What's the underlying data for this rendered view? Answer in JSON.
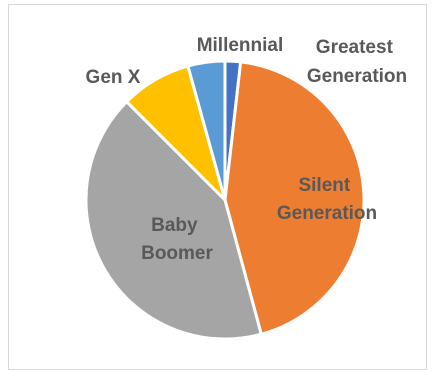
{
  "chart_data": {
    "type": "pie",
    "title": "",
    "categories": [
      "Greatest Generation",
      "Silent Generation",
      "Baby Boomer",
      "Gen X",
      "Millennial"
    ],
    "values": [
      1.8,
      44.0,
      41.7,
      8.2,
      4.3
    ],
    "unit": "approximate share (%)",
    "start_angle_deg": 0,
    "direction": "clockwise",
    "colors": [
      "#4472c4",
      "#ed7d31",
      "#a5a5a5",
      "#ffc000",
      "#5b9bd5"
    ],
    "label_color": "#595959",
    "legend": "none",
    "labels": [
      {
        "lines": [
          "Greatest",
          "Generation"
        ]
      },
      {
        "lines": [
          "Silent",
          "Generation"
        ]
      },
      {
        "lines": [
          "Baby",
          "Boomer"
        ]
      },
      {
        "lines": [
          "Gen X"
        ]
      },
      {
        "lines": [
          "Millennial"
        ]
      }
    ]
  }
}
